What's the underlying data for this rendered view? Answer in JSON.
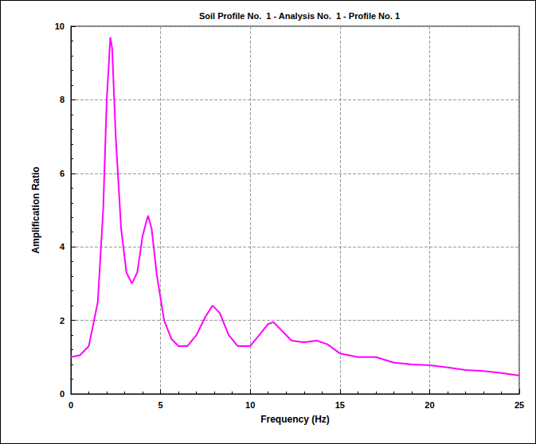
{
  "chart_data": {
    "type": "line",
    "title": "Soil Profile No.  1 - Analysis No.  1 - Profile No. 1",
    "x_label": "Frequency (Hz)",
    "y_label": "Amplification Ratio",
    "x": [
      0,
      0.5,
      1,
      1.5,
      1.8,
      2.0,
      2.2,
      2.3,
      2.5,
      2.8,
      3.1,
      3.4,
      3.7,
      4.0,
      4.3,
      4.5,
      4.8,
      5.2,
      5.6,
      6.0,
      6.5,
      7.0,
      7.5,
      7.9,
      8.3,
      8.8,
      9.3,
      10,
      10.5,
      11.0,
      11.3,
      11.8,
      12.3,
      13,
      13.7,
      14.3,
      15,
      16,
      17,
      18,
      19,
      20,
      21,
      22,
      23,
      24,
      25
    ],
    "series": [
      {
        "color": "#ff00ff",
        "values": [
          1.0,
          1.05,
          1.3,
          2.5,
          5.0,
          8.0,
          9.7,
          9.4,
          7.0,
          4.5,
          3.3,
          3.0,
          3.3,
          4.3,
          4.85,
          4.5,
          3.2,
          2.0,
          1.5,
          1.3,
          1.3,
          1.6,
          2.1,
          2.4,
          2.2,
          1.6,
          1.3,
          1.3,
          1.6,
          1.9,
          1.95,
          1.7,
          1.45,
          1.4,
          1.45,
          1.35,
          1.1,
          1.0,
          1.0,
          0.85,
          0.8,
          0.78,
          0.72,
          0.65,
          0.62,
          0.57,
          0.5
        ]
      }
    ],
    "xlim": [
      0,
      25
    ],
    "xticks": [
      0,
      5,
      10,
      15,
      20,
      25
    ],
    "ylim": [
      0,
      10
    ],
    "yticks": [
      0,
      2,
      4,
      6,
      8,
      10
    ],
    "grid": true
  }
}
